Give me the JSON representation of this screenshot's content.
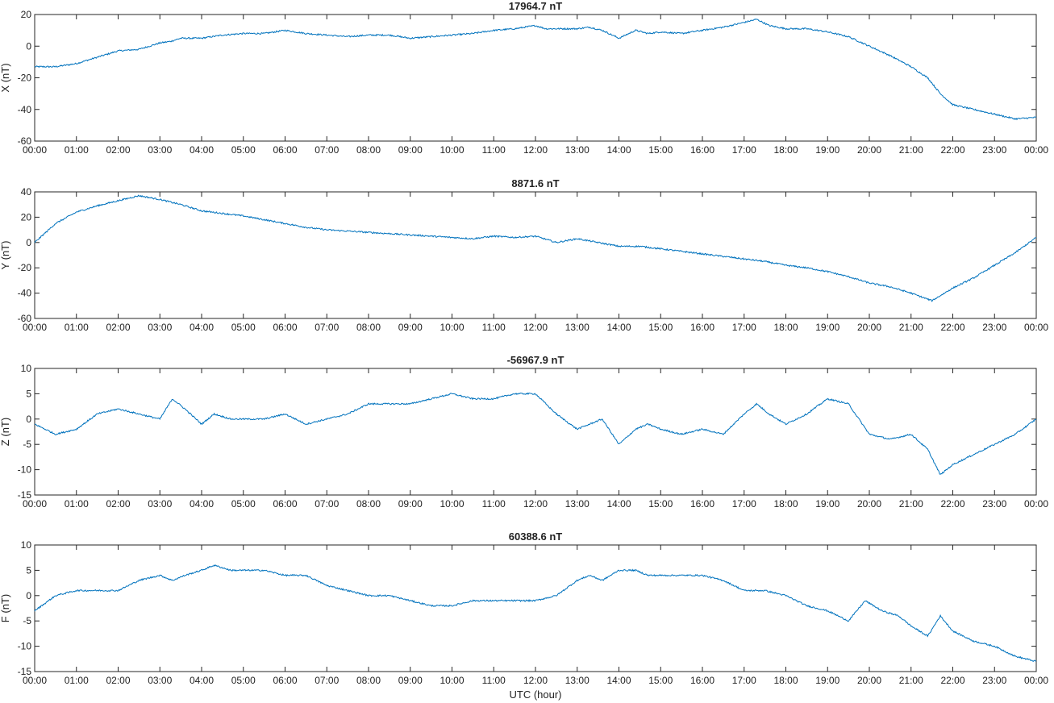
{
  "colors": {
    "series": "#0072BD",
    "axes": "#262626",
    "text": "#222222"
  },
  "xlabel": "UTC (hour)",
  "x_tick_labels": [
    "00:00",
    "01:00",
    "02:00",
    "03:00",
    "04:00",
    "05:00",
    "06:00",
    "07:00",
    "08:00",
    "09:00",
    "10:00",
    "11:00",
    "12:00",
    "13:00",
    "14:00",
    "15:00",
    "16:00",
    "17:00",
    "18:00",
    "19:00",
    "20:00",
    "21:00",
    "22:00",
    "23:00",
    "00:00"
  ],
  "chart_data": [
    {
      "type": "line",
      "title": "17964.7 nT",
      "ylabel": "X (nT)",
      "xlabel": "",
      "xlim": [
        0,
        24
      ],
      "ylim": [
        -60,
        20
      ],
      "yticks": [
        -60,
        -40,
        -20,
        0,
        20
      ],
      "x_unit": "hours UTC",
      "series": [
        {
          "x": [
            0,
            0.5,
            1,
            1.5,
            2,
            2.5,
            3,
            3.25,
            3.5,
            4,
            4.5,
            5,
            5.5,
            6,
            6.5,
            7,
            7.5,
            8,
            8.5,
            9,
            9.5,
            10,
            10.5,
            11,
            11.5,
            12,
            12.25,
            12.5,
            13,
            13.3,
            13.6,
            14,
            14.4,
            14.7,
            15,
            15.5,
            16,
            16.5,
            17,
            17.3,
            17.6,
            18,
            18.5,
            19,
            19.5,
            20,
            20.5,
            21,
            21.4,
            21.7,
            22,
            22.5,
            23,
            23.5,
            24
          ],
          "y": [
            -13,
            -13,
            -11,
            -7,
            -3,
            -2,
            2,
            3,
            5,
            5,
            7,
            8,
            8,
            10,
            8,
            7,
            6,
            7,
            7,
            5,
            6,
            7,
            8,
            10,
            11,
            13,
            11,
            11,
            11,
            12,
            10,
            5,
            10,
            8,
            9,
            8,
            10,
            12,
            15,
            17,
            13,
            11,
            11,
            9,
            6,
            0,
            -6,
            -13,
            -20,
            -30,
            -37,
            -40,
            -43,
            -46,
            -45
          ]
        }
      ]
    },
    {
      "type": "line",
      "title": "8871.6 nT",
      "ylabel": "Y (nT)",
      "xlabel": "",
      "xlim": [
        0,
        24
      ],
      "ylim": [
        -60,
        40
      ],
      "yticks": [
        -60,
        -40,
        -20,
        0,
        20,
        40
      ],
      "x_unit": "hours UTC",
      "series": [
        {
          "x": [
            0,
            0.5,
            1,
            1.5,
            2,
            2.5,
            3,
            3.5,
            4,
            4.5,
            5,
            5.5,
            6,
            6.5,
            7,
            7.5,
            8,
            8.5,
            9,
            9.5,
            10,
            10.5,
            11,
            11.5,
            12,
            12.5,
            13,
            13.5,
            14,
            14.5,
            15,
            15.5,
            16,
            16.5,
            17,
            17.5,
            18,
            18.5,
            19,
            19.5,
            20,
            20.5,
            21,
            21.5,
            22,
            22.5,
            23,
            23.5,
            24
          ],
          "y": [
            0,
            15,
            24,
            29,
            33,
            37,
            34,
            30,
            25,
            23,
            21,
            18,
            15,
            12,
            10,
            9,
            8,
            7,
            6,
            5,
            4,
            3,
            5,
            4,
            5,
            0,
            3,
            0,
            -3,
            -3,
            -5,
            -7,
            -9,
            -11,
            -13,
            -15,
            -18,
            -20,
            -23,
            -27,
            -32,
            -35,
            -40,
            -46,
            -36,
            -28,
            -18,
            -8,
            4
          ]
        }
      ]
    },
    {
      "type": "line",
      "title": "-56967.9 nT",
      "ylabel": "Z (nT)",
      "xlabel": "",
      "xlim": [
        0,
        24
      ],
      "ylim": [
        -15,
        10
      ],
      "yticks": [
        -15,
        -10,
        -5,
        0,
        5,
        10
      ],
      "x_unit": "hours UTC",
      "series": [
        {
          "x": [
            0,
            0.5,
            1,
            1.5,
            2,
            2.5,
            3,
            3.3,
            3.6,
            4,
            4.3,
            4.7,
            5,
            5.5,
            6,
            6.5,
            7,
            7.5,
            8,
            8.5,
            9,
            9.5,
            10,
            10.5,
            11,
            11.5,
            12,
            12.5,
            13,
            13.3,
            13.6,
            14,
            14.4,
            14.7,
            15,
            15.5,
            16,
            16.5,
            17,
            17.3,
            17.6,
            18,
            18.5,
            19,
            19.5,
            20,
            20.5,
            21,
            21.4,
            21.7,
            22,
            22.5,
            23,
            23.5,
            24
          ],
          "y": [
            -1,
            -3,
            -2,
            1,
            2,
            1,
            0,
            4,
            2,
            -1,
            1,
            0,
            0,
            0,
            1,
            -1,
            0,
            1,
            3,
            3,
            3,
            4,
            5,
            4,
            4,
            5,
            5,
            1,
            -2,
            -1,
            0,
            -5,
            -2,
            -1,
            -2,
            -3,
            -2,
            -3,
            1,
            3,
            1,
            -1,
            1,
            4,
            3,
            -3,
            -4,
            -3,
            -6,
            -11,
            -9,
            -7,
            -5,
            -3,
            0
          ]
        }
      ]
    },
    {
      "type": "line",
      "title": "60388.6 nT",
      "ylabel": "F (nT)",
      "xlabel": "UTC (hour)",
      "xlim": [
        0,
        24
      ],
      "ylim": [
        -15,
        10
      ],
      "yticks": [
        -15,
        -10,
        -5,
        0,
        5,
        10
      ],
      "x_unit": "hours UTC",
      "series": [
        {
          "x": [
            0,
            0.5,
            1,
            1.5,
            2,
            2.5,
            3,
            3.3,
            3.6,
            4,
            4.3,
            4.7,
            5,
            5.5,
            6,
            6.5,
            7,
            7.5,
            8,
            8.5,
            9,
            9.5,
            10,
            10.5,
            11,
            11.5,
            12,
            12.5,
            13,
            13.3,
            13.6,
            14,
            14.4,
            14.7,
            15,
            15.5,
            16,
            16.5,
            17,
            17.5,
            18,
            18.5,
            19,
            19.5,
            19.9,
            20.3,
            20.7,
            21,
            21.4,
            21.7,
            22,
            22.5,
            23,
            23.5,
            24
          ],
          "y": [
            -3,
            0,
            1,
            1,
            1,
            3,
            4,
            3,
            4,
            5,
            6,
            5,
            5,
            5,
            4,
            4,
            2,
            1,
            0,
            0,
            -1,
            -2,
            -2,
            -1,
            -1,
            -1,
            -1,
            0,
            3,
            4,
            3,
            5,
            5,
            4,
            4,
            4,
            4,
            3,
            1,
            1,
            0,
            -2,
            -3,
            -5,
            -1,
            -3,
            -4,
            -6,
            -8,
            -4,
            -7,
            -9,
            -10,
            -12,
            -13
          ]
        }
      ]
    }
  ]
}
